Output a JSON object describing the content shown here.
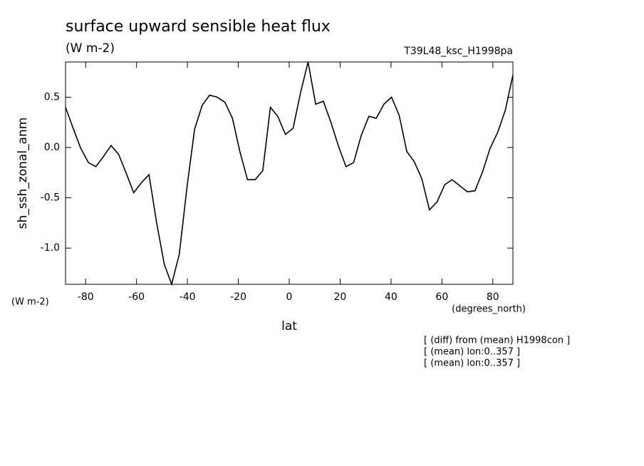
{
  "chart_data": {
    "type": "line",
    "title": "surface upward sensible heat flux",
    "subtitle": "(W m-2)",
    "run_label": "T39L48_ksc_H1998pa",
    "y_label": "sh_ssh_zonal_anm",
    "y_unit": "(W m-2)",
    "x_label": "lat",
    "x_unit": "(degrees_north)",
    "notes": [
      "[ (diff) from (mean) H1998con ]",
      "[ (mean) lon:0..357 ]",
      "[ (mean) lon:0..357 ]"
    ],
    "color": "#000000",
    "x": [
      -87.9,
      -84.9,
      -81.9,
      -78.9,
      -76.0,
      -73.0,
      -70.0,
      -67.0,
      -64.0,
      -61.1,
      -58.1,
      -55.1,
      -52.1,
      -49.1,
      -46.2,
      -43.2,
      -40.2,
      -37.2,
      -34.2,
      -31.3,
      -28.3,
      -25.3,
      -22.3,
      -19.4,
      -16.4,
      -13.4,
      -10.4,
      -7.4,
      -4.5,
      -1.5,
      1.5,
      4.5,
      7.4,
      10.4,
      13.4,
      16.4,
      19.4,
      22.3,
      25.3,
      28.3,
      31.3,
      34.2,
      37.2,
      40.2,
      43.2,
      46.2,
      49.1,
      52.1,
      55.1,
      58.1,
      61.1,
      64.0,
      67.0,
      70.0,
      73.0,
      76.0,
      78.9,
      81.9,
      84.9,
      87.9
    ],
    "values": [
      0.4,
      0.19,
      -0.01,
      -0.15,
      -0.19,
      -0.09,
      0.02,
      -0.07,
      -0.26,
      -0.45,
      -0.35,
      -0.27,
      -0.75,
      -1.16,
      -1.36,
      -1.06,
      -0.4,
      0.18,
      0.42,
      0.52,
      0.5,
      0.45,
      0.29,
      -0.04,
      -0.32,
      -0.32,
      -0.23,
      0.4,
      0.31,
      0.13,
      0.19,
      0.55,
      0.85,
      0.43,
      0.46,
      0.25,
      0.01,
      -0.19,
      -0.15,
      0.12,
      0.31,
      0.29,
      0.43,
      0.5,
      0.32,
      -0.04,
      -0.14,
      -0.31,
      -0.62,
      -0.54,
      -0.37,
      -0.32,
      -0.38,
      -0.44,
      -0.43,
      -0.24,
      -0.01,
      0.15,
      0.37,
      0.72
    ],
    "xlim": [
      -87.9,
      87.9
    ],
    "xticks": [
      -80,
      -60,
      -40,
      -20,
      0,
      20,
      40,
      60,
      80
    ],
    "ylim": [
      -1.36,
      0.85
    ],
    "yticks": [
      0.5,
      {
        "value": 0,
        "label": "0.0"
      },
      -0.5,
      {
        "value": -1,
        "label": "-1.0"
      }
    ]
  }
}
